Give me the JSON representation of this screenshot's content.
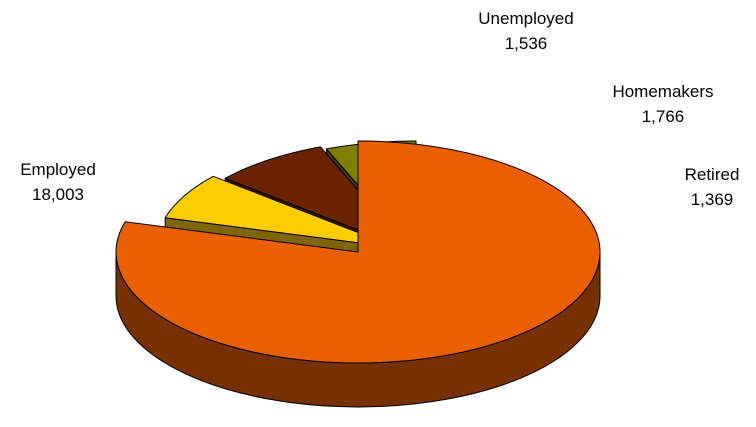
{
  "chart_data": {
    "type": "pie",
    "style": "3d-exploded",
    "title": "",
    "categories": [
      "Employed",
      "Unemployed",
      "Homemakers",
      "Retired"
    ],
    "values": [
      18003,
      1536,
      1766,
      1369
    ],
    "value_labels": [
      "18,003",
      "1,536",
      "1,766",
      "1,369"
    ],
    "colors": {
      "Employed": "#EA6000",
      "Unemployed": "#FFCC00",
      "Homemakers": "#6B2300",
      "Retired": "#808000"
    },
    "side_colors": {
      "Employed": "#773000",
      "Unemployed": "#806600",
      "Homemakers": "#3A1200",
      "Retired": "#3E3E00"
    },
    "legend": "none",
    "labels": "outside, category name and value"
  }
}
